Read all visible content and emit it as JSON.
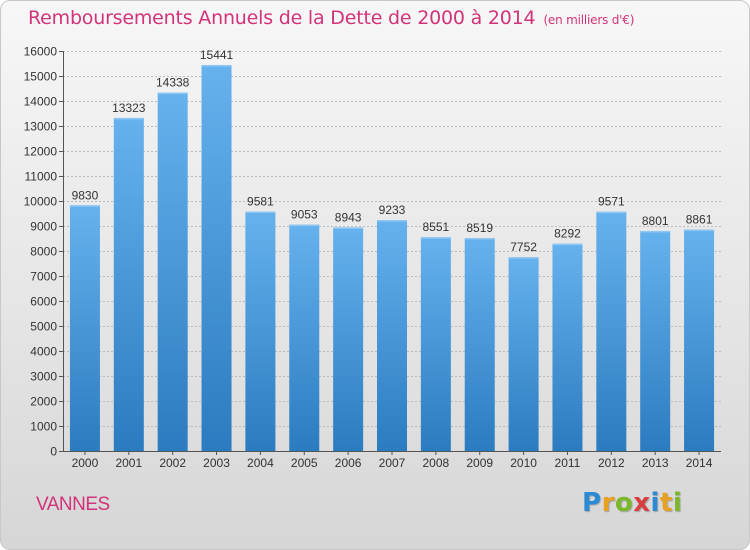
{
  "header": {
    "title": "Remboursements Annuels de la Dette de 2000 à 2014",
    "unit": "(en milliers d'€)"
  },
  "footer": {
    "place": "VANNES",
    "logo": "Proxiti"
  },
  "colors": {
    "title": "#d2337a",
    "bar_top": "#66b2ee",
    "bar_bottom": "#2b7bc0",
    "axis_text": "#333333"
  },
  "chart_data": {
    "type": "bar",
    "title": "Remboursements Annuels de la Dette de 2000 à 2014",
    "xlabel": "",
    "ylabel": "",
    "categories": [
      "2000",
      "2001",
      "2002",
      "2003",
      "2004",
      "2005",
      "2006",
      "2007",
      "2008",
      "2009",
      "2010",
      "2011",
      "2012",
      "2013",
      "2014"
    ],
    "values": [
      9830,
      13323,
      14338,
      15441,
      9581,
      9053,
      8943,
      9233,
      8551,
      8519,
      7752,
      8292,
      9571,
      8801,
      8861
    ],
    "ylim": [
      0,
      16000
    ],
    "yticks": [
      0,
      1000,
      2000,
      3000,
      4000,
      5000,
      6000,
      7000,
      8000,
      9000,
      10000,
      11000,
      12000,
      13000,
      14000,
      15000,
      16000
    ],
    "grid": true
  }
}
